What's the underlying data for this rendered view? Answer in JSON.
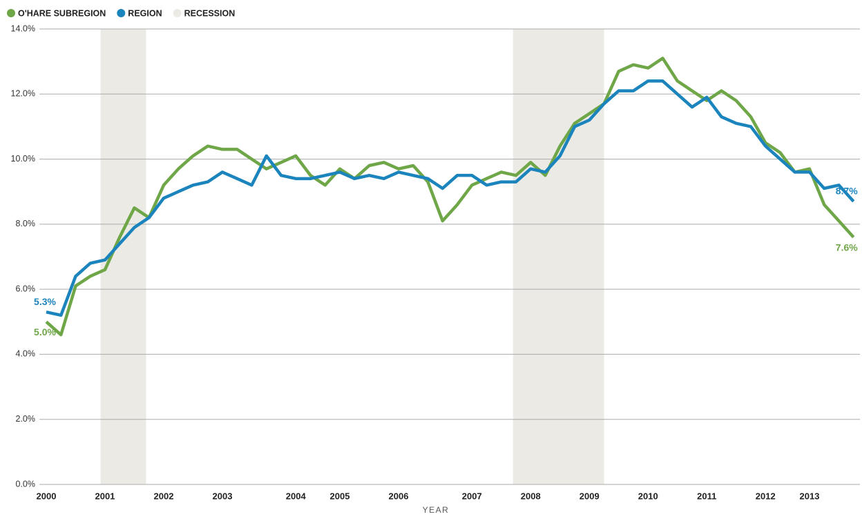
{
  "chart_data": {
    "type": "line",
    "x_label": "YEAR",
    "categories": [
      "2000",
      null,
      null,
      null,
      "2001",
      null,
      null,
      null,
      "2002",
      null,
      null,
      null,
      "2003",
      null,
      null,
      null,
      null,
      "2004",
      null,
      null,
      "2005",
      null,
      null,
      null,
      "2006",
      null,
      null,
      null,
      null,
      "2007",
      null,
      null,
      null,
      "2008",
      null,
      null,
      null,
      "2009",
      null,
      null,
      null,
      "2010",
      null,
      null,
      null,
      "2011",
      null,
      null,
      null,
      "2012",
      null,
      null,
      "2013",
      null,
      null,
      null
    ],
    "series": [
      {
        "name": "O'HARE SUBREGION",
        "color": "#6ea648",
        "values": [
          5.0,
          4.6,
          6.1,
          6.4,
          6.6,
          7.6,
          8.5,
          8.2,
          9.2,
          9.7,
          10.1,
          10.4,
          10.3,
          10.3,
          10.0,
          9.7,
          9.9,
          10.1,
          9.5,
          9.2,
          9.7,
          9.4,
          9.8,
          9.9,
          9.7,
          9.8,
          9.3,
          8.1,
          8.6,
          9.2,
          9.4,
          9.6,
          9.5,
          9.9,
          9.5,
          10.4,
          11.1,
          11.4,
          11.7,
          12.7,
          12.9,
          12.8,
          13.1,
          12.4,
          12.1,
          11.8,
          12.1,
          11.8,
          11.3,
          10.5,
          10.2,
          9.6,
          9.7,
          8.6,
          8.1,
          7.6
        ],
        "value_labels": [
          "5.0%",
          null,
          null,
          null,
          null,
          null,
          null,
          null,
          null,
          null,
          null,
          null,
          null,
          null,
          null,
          null,
          null,
          null,
          null,
          null,
          null,
          null,
          null,
          null,
          null,
          null,
          null,
          null,
          null,
          null,
          null,
          null,
          null,
          null,
          null,
          null,
          null,
          null,
          null,
          null,
          null,
          null,
          null,
          null,
          null,
          null,
          null,
          null,
          null,
          null,
          null,
          null,
          null,
          null,
          null,
          "7.6%"
        ]
      },
      {
        "name": "REGION",
        "color": "#1b84bd",
        "values": [
          5.3,
          5.2,
          6.4,
          6.8,
          6.9,
          7.4,
          7.9,
          8.2,
          8.8,
          9.0,
          9.2,
          9.3,
          9.6,
          9.4,
          9.2,
          10.1,
          9.5,
          9.4,
          9.4,
          9.5,
          9.6,
          9.4,
          9.5,
          9.4,
          9.6,
          9.5,
          9.4,
          9.1,
          9.5,
          9.5,
          9.2,
          9.3,
          9.3,
          9.7,
          9.6,
          10.1,
          11.0,
          11.2,
          11.7,
          12.1,
          12.1,
          12.4,
          12.4,
          12.0,
          11.6,
          11.9,
          11.3,
          11.1,
          11.0,
          10.4,
          10.0,
          9.6,
          9.6,
          9.1,
          9.2,
          8.7
        ],
        "value_labels": [
          "5.3%",
          null,
          null,
          null,
          null,
          null,
          null,
          null,
          null,
          null,
          null,
          null,
          null,
          null,
          null,
          null,
          null,
          null,
          null,
          null,
          null,
          null,
          null,
          null,
          null,
          null,
          null,
          null,
          null,
          null,
          null,
          null,
          null,
          null,
          null,
          null,
          null,
          null,
          null,
          null,
          null,
          null,
          null,
          null,
          null,
          null,
          null,
          null,
          null,
          null,
          null,
          null,
          null,
          null,
          null,
          "8.7%"
        ]
      }
    ],
    "recession": {
      "name": "RECESSION",
      "color": "#ebeae5",
      "ranges": [
        [
          3.7,
          6.8
        ],
        [
          31.8,
          38.0
        ]
      ]
    },
    "ylim": [
      0,
      14
    ],
    "yticks": [
      {
        "value": 0,
        "label": "0.0%"
      },
      {
        "value": 2,
        "label": "2.0%"
      },
      {
        "value": 4,
        "label": "4.0%"
      },
      {
        "value": 6,
        "label": "6.0%"
      },
      {
        "value": 8,
        "label": "8.0%"
      },
      {
        "value": 10,
        "label": "10.0%"
      },
      {
        "value": 12,
        "label": "12.0%"
      },
      {
        "value": 14,
        "label": "14.0%"
      }
    ],
    "grid": true
  }
}
